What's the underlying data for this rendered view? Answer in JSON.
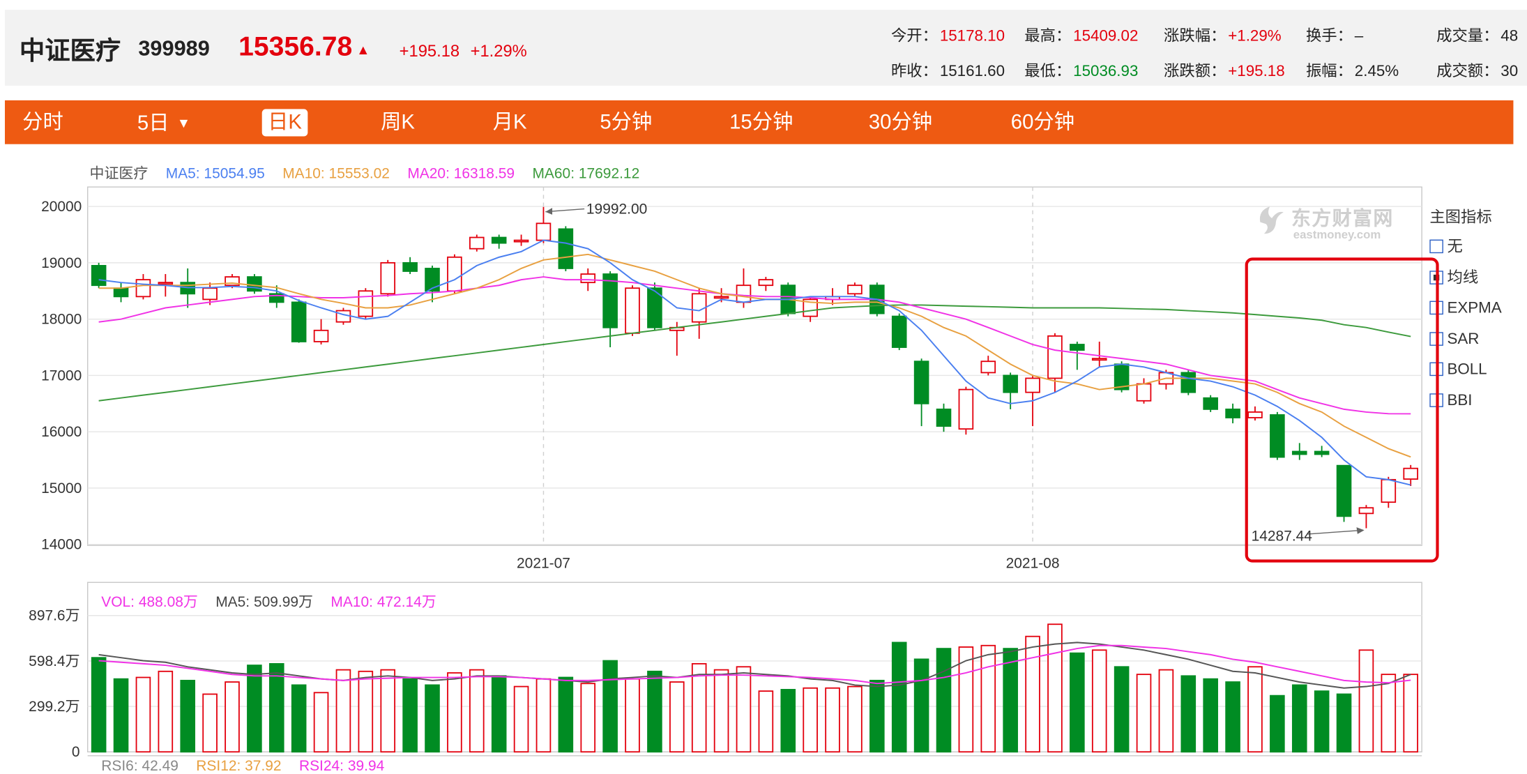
{
  "header": {
    "name": "中证医疗",
    "code": "399989",
    "price": "15356.78",
    "arrow": "▲",
    "change": "+195.18",
    "change_pct": "+1.29%",
    "quotes": [
      {
        "label": "今开：",
        "value": "15178.10",
        "tone": "up"
      },
      {
        "label": "最高：",
        "value": "15409.02",
        "tone": "up"
      },
      {
        "label": "涨跌幅：",
        "value": "+1.29%",
        "tone": "up"
      },
      {
        "label": "换手：",
        "value": "–",
        "tone": "neutral"
      },
      {
        "label": "成交量：",
        "value": "48",
        "tone": "neutral"
      },
      {
        "label": "昨收：",
        "value": "15161.60",
        "tone": "neutral"
      },
      {
        "label": "最低：",
        "value": "15036.93",
        "tone": "down"
      },
      {
        "label": "涨跌额：",
        "value": "+195.18",
        "tone": "up"
      },
      {
        "label": "振幅：",
        "value": "2.45%",
        "tone": "neutral"
      },
      {
        "label": "成交额：",
        "value": "30",
        "tone": "neutral"
      }
    ]
  },
  "tabs": [
    {
      "label": "分时",
      "active": false
    },
    {
      "label": "5日",
      "active": false,
      "dropdown": "▼"
    },
    {
      "label": "日K",
      "active": true
    },
    {
      "label": "周K",
      "active": false
    },
    {
      "label": "月K",
      "active": false
    },
    {
      "label": "5分钟",
      "active": false
    },
    {
      "label": "15分钟",
      "active": false
    },
    {
      "label": "30分钟",
      "active": false
    },
    {
      "label": "60分钟",
      "active": false
    }
  ],
  "price_legend": {
    "name": "中证医疗",
    "ma5": "MA5: 15054.95",
    "ma10": "MA10: 15553.02",
    "ma20": "MA20: 16318.59",
    "ma60": "MA60: 17692.12"
  },
  "vol_legend": {
    "vol": "VOL: 488.08万",
    "ma5": "MA5: 509.99万",
    "ma10": "MA10: 472.14万"
  },
  "rsi_legend": {
    "rsi6": "RSI6: 42.49",
    "rsi12": "RSI12: 37.92",
    "rsi24": "RSI24: 39.94"
  },
  "indicators": {
    "title": "主图指标",
    "items": [
      {
        "label": "无",
        "checked": false
      },
      {
        "label": "均线",
        "checked": true
      },
      {
        "label": "EXPMA",
        "checked": false
      },
      {
        "label": "SAR",
        "checked": false
      },
      {
        "label": "BOLL",
        "checked": false
      },
      {
        "label": "BBI",
        "checked": false
      }
    ]
  },
  "watermark": {
    "cn": "东方财富网",
    "en": "eastmoney.com"
  },
  "colors": {
    "up": "#e3000d",
    "down": "#008c23",
    "accent": "#ee5a12",
    "ma5": "#4a7ff0",
    "ma10": "#e8a040",
    "ma20": "#f032e6",
    "ma60": "#3c9a3c",
    "vol_ma5": "#555555",
    "vol_ma10": "#f032e6",
    "highlight": "#e3000d"
  },
  "chart_data": [
    {
      "type": "candlestick",
      "y_ticks": [
        "20000",
        "19000",
        "18000",
        "17000",
        "16000",
        "15000",
        "14000"
      ],
      "ylim": [
        14000,
        20000
      ],
      "x_labels": [
        {
          "label": "2021-07",
          "index": 20
        },
        {
          "label": "2021-08",
          "index": 42
        }
      ],
      "annotations": [
        {
          "label": "19992.00",
          "index": 20,
          "value": 19992
        },
        {
          "label": "14287.44",
          "index": 57,
          "value": 14287.44
        }
      ],
      "candles": [
        {
          "o": 18950,
          "c": 18600,
          "h": 19000,
          "l": 18550
        },
        {
          "o": 18550,
          "c": 18400,
          "h": 18650,
          "l": 18300
        },
        {
          "o": 18400,
          "c": 18700,
          "h": 18800,
          "l": 18350
        },
        {
          "o": 18650,
          "c": 18650,
          "h": 18800,
          "l": 18400
        },
        {
          "o": 18650,
          "c": 18450,
          "h": 18900,
          "l": 18200
        },
        {
          "o": 18350,
          "c": 18550,
          "h": 18650,
          "l": 18250
        },
        {
          "o": 18600,
          "c": 18750,
          "h": 18800,
          "l": 18550
        },
        {
          "o": 18750,
          "c": 18500,
          "h": 18800,
          "l": 18450
        },
        {
          "o": 18450,
          "c": 18300,
          "h": 18600,
          "l": 18200
        },
        {
          "o": 18300,
          "c": 17600,
          "h": 18350,
          "l": 17580
        },
        {
          "o": 17600,
          "c": 17800,
          "h": 18000,
          "l": 17550
        },
        {
          "o": 17950,
          "c": 18150,
          "h": 18200,
          "l": 17900
        },
        {
          "o": 18050,
          "c": 18500,
          "h": 18550,
          "l": 18000
        },
        {
          "o": 18450,
          "c": 19000,
          "h": 19050,
          "l": 18400
        },
        {
          "o": 19000,
          "c": 18850,
          "h": 19100,
          "l": 18800
        },
        {
          "o": 18900,
          "c": 18500,
          "h": 18950,
          "l": 18300
        },
        {
          "o": 18500,
          "c": 19100,
          "h": 19150,
          "l": 18450
        },
        {
          "o": 19250,
          "c": 19450,
          "h": 19500,
          "l": 19200
        },
        {
          "o": 19450,
          "c": 19350,
          "h": 19500,
          "l": 19250
        },
        {
          "o": 19400,
          "c": 19400,
          "h": 19500,
          "l": 19300
        },
        {
          "o": 19400,
          "c": 19700,
          "h": 19992,
          "l": 19350
        },
        {
          "o": 19600,
          "c": 18900,
          "h": 19650,
          "l": 18850
        },
        {
          "o": 18650,
          "c": 18800,
          "h": 18900,
          "l": 18500
        },
        {
          "o": 18800,
          "c": 17850,
          "h": 18850,
          "l": 17500
        },
        {
          "o": 17750,
          "c": 18550,
          "h": 18600,
          "l": 17700
        },
        {
          "o": 18550,
          "c": 17850,
          "h": 18650,
          "l": 17800
        },
        {
          "o": 17800,
          "c": 17850,
          "h": 17950,
          "l": 17350
        },
        {
          "o": 17950,
          "c": 18450,
          "h": 18550,
          "l": 17650
        },
        {
          "o": 18400,
          "c": 18400,
          "h": 18550,
          "l": 18300
        },
        {
          "o": 18300,
          "c": 18600,
          "h": 18900,
          "l": 18200
        },
        {
          "o": 18600,
          "c": 18700,
          "h": 18750,
          "l": 18500
        },
        {
          "o": 18600,
          "c": 18100,
          "h": 18650,
          "l": 18050
        },
        {
          "o": 18050,
          "c": 18350,
          "h": 18400,
          "l": 17950
        },
        {
          "o": 18350,
          "c": 18400,
          "h": 18550,
          "l": 18250
        },
        {
          "o": 18450,
          "c": 18600,
          "h": 18650,
          "l": 18400
        },
        {
          "o": 18600,
          "c": 18100,
          "h": 18650,
          "l": 18050
        },
        {
          "o": 18050,
          "c": 17500,
          "h": 18100,
          "l": 17450
        },
        {
          "o": 17250,
          "c": 16500,
          "h": 17300,
          "l": 16100
        },
        {
          "o": 16400,
          "c": 16100,
          "h": 16500,
          "l": 16000
        },
        {
          "o": 16050,
          "c": 16750,
          "h": 16800,
          "l": 15950
        },
        {
          "o": 17050,
          "c": 17250,
          "h": 17350,
          "l": 17000
        },
        {
          "o": 17000,
          "c": 16700,
          "h": 17050,
          "l": 16400
        },
        {
          "o": 16700,
          "c": 16950,
          "h": 17000,
          "l": 16100
        },
        {
          "o": 16950,
          "c": 17700,
          "h": 17750,
          "l": 16700
        },
        {
          "o": 17550,
          "c": 17450,
          "h": 17600,
          "l": 17100
        },
        {
          "o": 17300,
          "c": 17300,
          "h": 17600,
          "l": 17150
        },
        {
          "o": 17200,
          "c": 16750,
          "h": 17250,
          "l": 16700
        },
        {
          "o": 16550,
          "c": 16850,
          "h": 16950,
          "l": 16500
        },
        {
          "o": 16850,
          "c": 17050,
          "h": 17100,
          "l": 16750
        },
        {
          "o": 17050,
          "c": 16700,
          "h": 17100,
          "l": 16650
        },
        {
          "o": 16600,
          "c": 16400,
          "h": 16650,
          "l": 16350
        },
        {
          "o": 16400,
          "c": 16250,
          "h": 16500,
          "l": 16150
        },
        {
          "o": 16250,
          "c": 16350,
          "h": 16450,
          "l": 16200
        },
        {
          "o": 16300,
          "c": 15550,
          "h": 16350,
          "l": 15500
        },
        {
          "o": 15650,
          "c": 15600,
          "h": 15800,
          "l": 15500
        },
        {
          "o": 15650,
          "c": 15600,
          "h": 15750,
          "l": 15550
        },
        {
          "o": 15400,
          "c": 14500,
          "h": 15400,
          "l": 14400
        },
        {
          "o": 14550,
          "c": 14650,
          "h": 14700,
          "l": 14287.44
        },
        {
          "o": 14750,
          "c": 15150,
          "h": 15200,
          "l": 14650
        },
        {
          "o": 15160,
          "c": 15350,
          "h": 15410,
          "l": 15037
        }
      ],
      "ma5": [
        18700,
        18650,
        18620,
        18600,
        18560,
        18560,
        18580,
        18560,
        18500,
        18330,
        18200,
        18080,
        18000,
        18050,
        18300,
        18550,
        18700,
        18950,
        19100,
        19200,
        19400,
        19350,
        19250,
        19000,
        18700,
        18500,
        18200,
        18150,
        18350,
        18300,
        18350,
        18350,
        18400,
        18400,
        18400,
        18350,
        18150,
        17800,
        17350,
        16900,
        16600,
        16500,
        16550,
        16700,
        16900,
        17150,
        17200,
        17150,
        17050,
        16950,
        16900,
        16800,
        16650,
        16450,
        16200,
        15900,
        15500,
        15200,
        15150,
        15054.95
      ],
      "ma10": [
        18550,
        18550,
        18600,
        18600,
        18600,
        18620,
        18640,
        18600,
        18560,
        18450,
        18350,
        18280,
        18200,
        18200,
        18250,
        18350,
        18450,
        18550,
        18700,
        18900,
        19050,
        19100,
        19150,
        19050,
        18950,
        18850,
        18700,
        18550,
        18450,
        18400,
        18350,
        18350,
        18300,
        18280,
        18300,
        18300,
        18200,
        18050,
        17850,
        17700,
        17450,
        17200,
        17000,
        16900,
        16850,
        16750,
        16800,
        16850,
        16950,
        16950,
        16950,
        16900,
        16850,
        16700,
        16500,
        16350,
        16100,
        15900,
        15700,
        15553.02
      ],
      "ma20": [
        17950,
        18000,
        18100,
        18200,
        18250,
        18300,
        18350,
        18400,
        18420,
        18400,
        18380,
        18380,
        18400,
        18420,
        18450,
        18470,
        18500,
        18550,
        18600,
        18700,
        18750,
        18700,
        18700,
        18680,
        18650,
        18600,
        18550,
        18500,
        18450,
        18420,
        18400,
        18400,
        18380,
        18350,
        18350,
        18350,
        18300,
        18200,
        18100,
        18000,
        17850,
        17700,
        17550,
        17450,
        17400,
        17350,
        17300,
        17250,
        17200,
        17100,
        17000,
        16950,
        16900,
        16750,
        16600,
        16500,
        16400,
        16350,
        16320,
        16318.59
      ],
      "ma60": [
        16550,
        16600,
        16650,
        16700,
        16750,
        16800,
        16850,
        16900,
        16950,
        17000,
        17050,
        17100,
        17150,
        17200,
        17250,
        17300,
        17350,
        17400,
        17450,
        17500,
        17550,
        17600,
        17650,
        17700,
        17750,
        17800,
        17850,
        17900,
        17950,
        18000,
        18050,
        18100,
        18150,
        18200,
        18220,
        18240,
        18250,
        18250,
        18240,
        18230,
        18220,
        18210,
        18200,
        18200,
        18200,
        18200,
        18190,
        18180,
        18170,
        18150,
        18130,
        18110,
        18080,
        18050,
        18020,
        17980,
        17900,
        17850,
        17770,
        17692.12
      ]
    },
    {
      "type": "bar",
      "unit": "万",
      "y_ticks": [
        "897.6万",
        "598.4万",
        "299.2万",
        "0"
      ],
      "ylim": [
        0,
        897.6
      ],
      "volumes": [
        620,
        480,
        490,
        530,
        470,
        380,
        460,
        570,
        580,
        440,
        390,
        540,
        530,
        540,
        480,
        440,
        520,
        540,
        500,
        430,
        480,
        490,
        450,
        600,
        480,
        530,
        460,
        580,
        540,
        560,
        400,
        410,
        420,
        420,
        430,
        470,
        720,
        610,
        680,
        690,
        700,
        680,
        760,
        840,
        650,
        670,
        560,
        510,
        540,
        500,
        480,
        460,
        560,
        370,
        440,
        400,
        380,
        670,
        510,
        510
      ],
      "vma5": [
        640,
        620,
        600,
        590,
        560,
        540,
        520,
        510,
        520,
        500,
        480,
        470,
        490,
        500,
        490,
        470,
        480,
        500,
        500,
        490,
        480,
        470,
        460,
        480,
        490,
        500,
        490,
        510,
        510,
        520,
        510,
        500,
        480,
        470,
        440,
        430,
        440,
        470,
        530,
        600,
        640,
        660,
        690,
        710,
        720,
        710,
        690,
        670,
        640,
        610,
        570,
        530,
        520,
        490,
        460,
        440,
        420,
        430,
        450,
        509.99
      ],
      "vma10": [
        600,
        590,
        580,
        570,
        550,
        530,
        510,
        500,
        500,
        490,
        480,
        470,
        480,
        485,
        490,
        490,
        490,
        495,
        495,
        490,
        480,
        470,
        470,
        475,
        480,
        485,
        490,
        500,
        505,
        505,
        500,
        495,
        490,
        480,
        470,
        450,
        460,
        470,
        490,
        520,
        560,
        590,
        620,
        650,
        680,
        700,
        700,
        690,
        680,
        660,
        640,
        610,
        590,
        560,
        530,
        500,
        470,
        460,
        455,
        472.14
      ]
    }
  ]
}
